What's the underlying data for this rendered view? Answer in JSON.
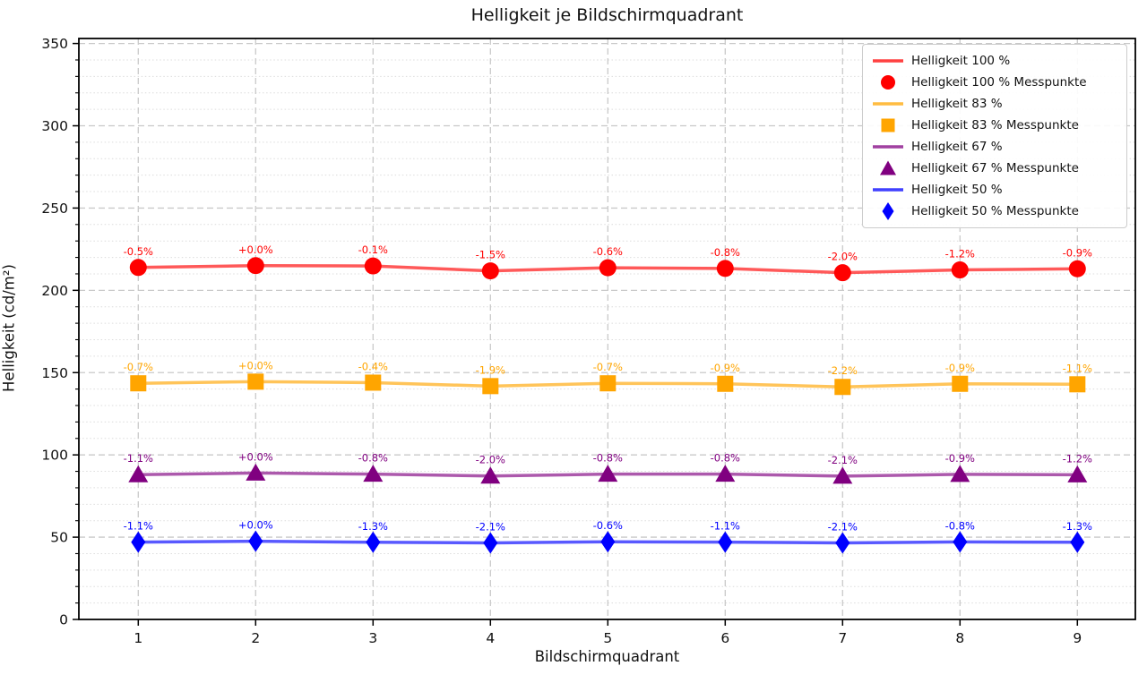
{
  "chart_data": {
    "type": "line",
    "title": "Helligkeit je Bildschirmquadrant",
    "xlabel": "Bildschirmquadrant",
    "ylabel": "Helligkeit (cd/m²)",
    "categories": [
      1,
      2,
      3,
      4,
      5,
      6,
      7,
      8,
      9
    ],
    "ylim": [
      0,
      353
    ],
    "yticks": [
      0,
      50,
      100,
      150,
      200,
      250,
      300,
      350
    ],
    "grid": {
      "major_style": "dashed",
      "minor_style": "dotted",
      "minor_y_step": 10,
      "vertical_minor": false
    },
    "legend_position": "upper right",
    "series": [
      {
        "name": "Helligkeit 100 %",
        "points_name": "Helligkeit 100 % Messpunkte",
        "color": "#ff0000",
        "marker": "circle",
        "values": [
          213.9,
          215.0,
          214.8,
          211.8,
          213.7,
          213.3,
          210.7,
          212.4,
          213.1
        ],
        "labels": [
          "-0.5%",
          "+0.0%",
          "-0.1%",
          "-1.5%",
          "-0.6%",
          "-0.8%",
          "-2.0%",
          "-1.2%",
          "-0.9%"
        ]
      },
      {
        "name": "Helligkeit 83 %",
        "points_name": "Helligkeit 83 % Messpunkte",
        "color": "#ffa500",
        "marker": "square",
        "values": [
          143.5,
          144.5,
          143.9,
          141.8,
          143.5,
          143.2,
          141.3,
          143.2,
          142.9
        ],
        "labels": [
          "-0.7%",
          "+0.0%",
          "-0.4%",
          "-1.9%",
          "-0.7%",
          "-0.9%",
          "-2.2%",
          "-0.9%",
          "-1.1%"
        ]
      },
      {
        "name": "Helligkeit 67 %",
        "points_name": "Helligkeit 67 % Messpunkte",
        "color": "#800080",
        "marker": "triangle",
        "values": [
          88.0,
          89.0,
          88.3,
          87.2,
          88.3,
          88.3,
          87.1,
          88.2,
          87.9
        ],
        "labels": [
          "-1.1%",
          "+0.0%",
          "-0.8%",
          "-2.0%",
          "-0.8%",
          "-0.8%",
          "-2.1%",
          "-0.9%",
          "-1.2%"
        ]
      },
      {
        "name": "Helligkeit 50 %",
        "points_name": "Helligkeit 50 % Messpunkte",
        "color": "#0000ff",
        "marker": "diamond",
        "values": [
          47.0,
          47.5,
          46.9,
          46.5,
          47.2,
          47.0,
          46.5,
          47.1,
          46.9
        ],
        "labels": [
          "-1.1%",
          "+0.0%",
          "-1.3%",
          "-2.1%",
          "-0.6%",
          "-1.1%",
          "-2.1%",
          "-0.8%",
          "-1.3%"
        ]
      }
    ],
    "legend": [
      {
        "label": "Helligkeit 100 %",
        "type": "line",
        "color": "#ff0000"
      },
      {
        "label": "Helligkeit 100 % Messpunkte",
        "type": "circle",
        "color": "#ff0000"
      },
      {
        "label": "Helligkeit 83 %",
        "type": "line",
        "color": "#ffa500"
      },
      {
        "label": "Helligkeit 83 % Messpunkte",
        "type": "square",
        "color": "#ffa500"
      },
      {
        "label": "Helligkeit 67 %",
        "type": "line",
        "color": "#800080"
      },
      {
        "label": "Helligkeit 67 % Messpunkte",
        "type": "triangle",
        "color": "#800080"
      },
      {
        "label": "Helligkeit 50 %",
        "type": "line",
        "color": "#0000ff"
      },
      {
        "label": "Helligkeit 50 % Messpunkte",
        "type": "diamond",
        "color": "#0000ff"
      }
    ]
  }
}
